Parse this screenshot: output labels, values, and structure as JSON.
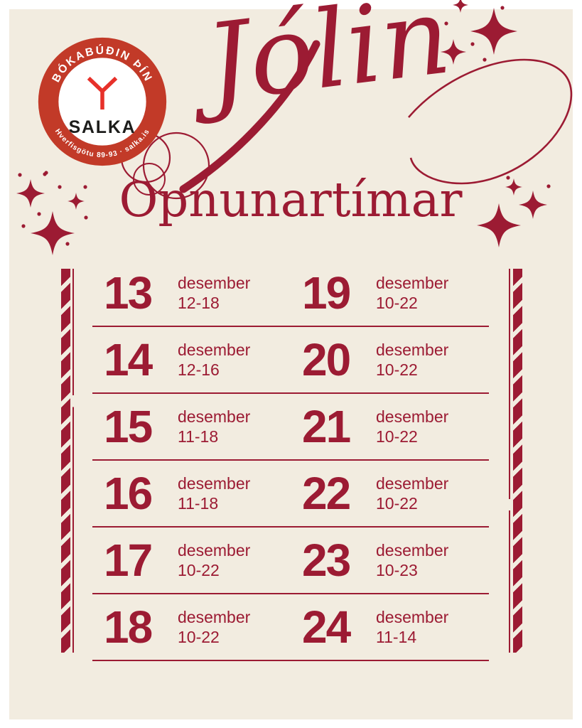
{
  "logo": {
    "top_arc": "BÓKABÚÐIN ÞÍN",
    "name": "SALKA",
    "bottom_arc": "Hverfisgötu 89-93 · salka.is"
  },
  "header": {
    "script_title": "Jólin",
    "subtitle": "Opnunartímar"
  },
  "schedule": {
    "month_label": "desember",
    "rows": [
      {
        "left": {
          "day": "13",
          "month": "desember",
          "hours": "12-18"
        },
        "right": {
          "day": "19",
          "month": "desember",
          "hours": "10-22"
        }
      },
      {
        "left": {
          "day": "14",
          "month": "desember",
          "hours": "12-16"
        },
        "right": {
          "day": "20",
          "month": "desember",
          "hours": "10-22"
        }
      },
      {
        "left": {
          "day": "15",
          "month": "desember",
          "hours": "11-18"
        },
        "right": {
          "day": "21",
          "month": "desember",
          "hours": "10-22"
        }
      },
      {
        "left": {
          "day": "16",
          "month": "desember",
          "hours": "11-18"
        },
        "right": {
          "day": "22",
          "month": "desember",
          "hours": "10-22"
        }
      },
      {
        "left": {
          "day": "17",
          "month": "desember",
          "hours": "10-22"
        },
        "right": {
          "day": "23",
          "month": "desember",
          "hours": "10-23"
        }
      },
      {
        "left": {
          "day": "18",
          "month": "desember",
          "hours": "10-22"
        },
        "right": {
          "day": "24",
          "month": "desember",
          "hours": "11-14"
        }
      }
    ]
  },
  "colors": {
    "canvas": "#f2ece0",
    "page_margin": "#ffffff",
    "accent_red": "#9c1b33",
    "logo_ring_red": "#c23a28",
    "logo_icon_red": "#e7312a",
    "logo_name_black": "#1d1d1b"
  }
}
